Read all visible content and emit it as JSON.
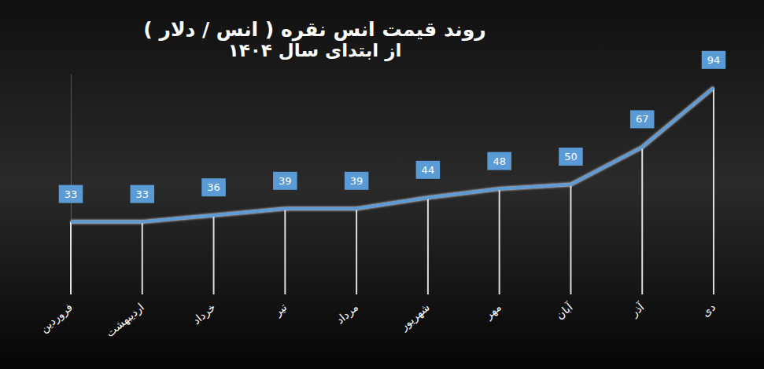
{
  "chart_data": {
    "type": "line",
    "title": "روند قیمت انس نقره ( انس / دلار )",
    "subtitle": "از ابتدای سال ۱۴۰۴",
    "categories": [
      "فروردین",
      "اردیبهشت",
      "خرداد",
      "تیر",
      "مرداد",
      "شهریور",
      "مهر",
      "آبان",
      "آذر",
      "دی"
    ],
    "values": [
      33,
      33,
      36,
      39,
      39,
      44,
      48,
      50,
      67,
      94
    ],
    "color": "#5b9bd5",
    "ylim": [
      0,
      100
    ],
    "grid": false,
    "data_labels": true,
    "tick_labels": "x",
    "marker": "none"
  }
}
